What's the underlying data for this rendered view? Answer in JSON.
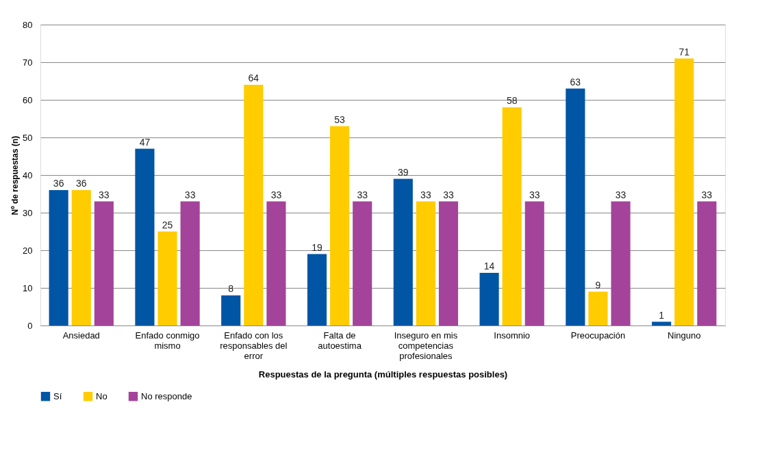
{
  "chart_data": {
    "type": "bar",
    "xlabel": "Respuestas de la pregunta (múltiples respuestas posibles)",
    "ylabel": "Nº de respuestas (n)",
    "categories": [
      "Ansiedad",
      "Enfado conmigo mismo",
      "Enfado con los responsables del error",
      "Falta de autoestima",
      "Inseguro en mis competencias profesionales",
      "Insomnio",
      "Preocupación",
      "Ninguno"
    ],
    "series": [
      {
        "name": "Sí",
        "color": "#0055a5",
        "values": [
          36,
          47,
          8,
          19,
          39,
          14,
          63,
          1
        ]
      },
      {
        "name": "No",
        "color": "#ffcc00",
        "values": [
          36,
          25,
          64,
          53,
          33,
          58,
          9,
          71
        ]
      },
      {
        "name": "No responde",
        "color": "#a3449a",
        "values": [
          33,
          33,
          33,
          33,
          33,
          33,
          33,
          33
        ]
      }
    ],
    "ylim": [
      0,
      80
    ],
    "yticks": [
      0,
      10,
      20,
      30,
      40,
      50,
      60,
      70,
      80
    ],
    "grid": "y",
    "legend": "bottom",
    "data_labels": true
  }
}
